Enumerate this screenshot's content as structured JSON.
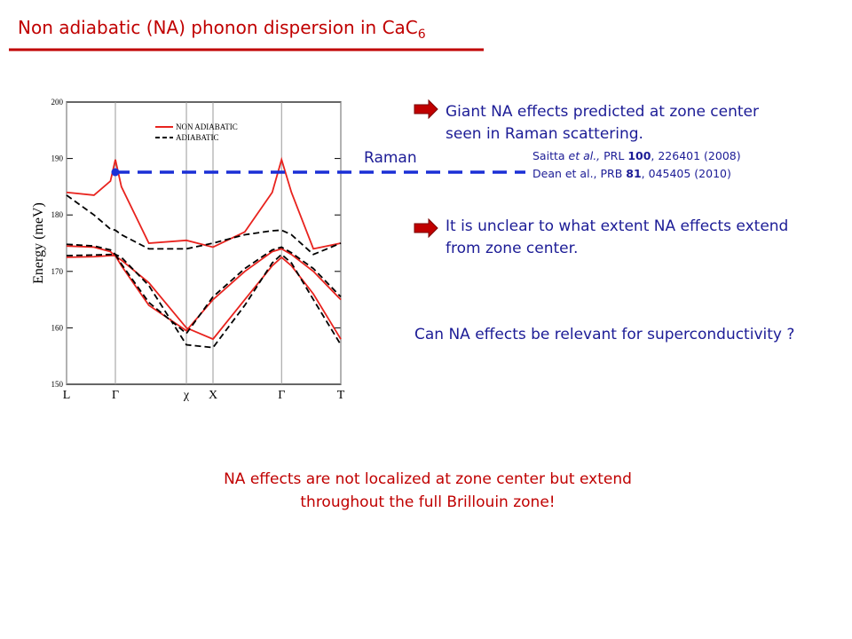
{
  "slide": {
    "title": "Non adiabatic (NA) phonon dispersion in CaC",
    "title_subscript": "6",
    "bullets": [
      [
        "Giant NA effects predicted at zone center",
        "seen in Raman scattering."
      ],
      [
        "It is unclear to what extent NA effects extend",
        "from zone center."
      ]
    ],
    "references": [
      [
        "Saitta ",
        "et al.,",
        "  PRL ",
        "100",
        ", 226401 (2008)"
      ],
      [
        "Dean et al.,  PRB ",
        "81",
        ", 045405 (2010)"
      ]
    ],
    "raman_label": "Raman",
    "question": "Can NA effects be relevant for superconductivity ?",
    "conclusion": [
      "NA effects are not localized at zone center but extend",
      "throughout the full  Brillouin zone!"
    ]
  },
  "chart_data": {
    "type": "line",
    "y_label": "Energy (meV)",
    "x": [
      0,
      0.1,
      0.16,
      0.178,
      0.2,
      0.3,
      0.437,
      0.534,
      0.65,
      0.75,
      0.784,
      0.82,
      0.9,
      1.0
    ],
    "xlim": [
      0,
      1
    ],
    "xticks": [
      {
        "value": 0,
        "label": "L"
      },
      {
        "value": 0.178,
        "label": "Γ"
      },
      {
        "value": 0.437,
        "label": "χ"
      },
      {
        "value": 0.534,
        "label": "X"
      },
      {
        "value": 0.784,
        "label": "Γ"
      },
      {
        "value": 1,
        "label": "T"
      }
    ],
    "ylim": [
      150,
      200
    ],
    "yticks": [
      150,
      160,
      170,
      180,
      190,
      200
    ],
    "series": [
      {
        "name": "NON ADIABATIC",
        "color": "#e8231e",
        "linestyle": "solid",
        "values": [
          184,
          183.5,
          186,
          189.8,
          185,
          175,
          175.5,
          174.3,
          177,
          184,
          189.8,
          184,
          174,
          175
        ]
      },
      {
        "name": "ADIABATIC",
        "color": "#000000",
        "linestyle": "dashed",
        "values": [
          183.5,
          180,
          177.5,
          177.3,
          176.5,
          174,
          174,
          175,
          176.5,
          177.2,
          177.3,
          176.5,
          173,
          175
        ]
      },
      {
        "color": "#e8231e",
        "linestyle": "solid",
        "values": [
          174.5,
          174.3,
          173.5,
          172.7,
          172,
          168,
          160,
          158,
          165,
          171,
          172.5,
          171,
          166,
          158
        ]
      },
      {
        "color": "#000000",
        "linestyle": "dashed",
        "values": [
          174.8,
          174.5,
          173.8,
          173,
          172.5,
          167.5,
          157,
          156.5,
          164,
          171.5,
          173,
          171.5,
          165,
          157
        ]
      },
      {
        "color": "#e8231e",
        "linestyle": "solid",
        "values": [
          172.5,
          172.6,
          172.8,
          172.8,
          171,
          164,
          159.5,
          165,
          170,
          173.5,
          174,
          173,
          170,
          165
        ]
      },
      {
        "color": "#000000",
        "linestyle": "dashed",
        "values": [
          172.8,
          172.9,
          173,
          173,
          171.3,
          164.5,
          159,
          165.5,
          170.5,
          173.8,
          174.3,
          173.3,
          170.5,
          165.5
        ]
      }
    ]
  }
}
